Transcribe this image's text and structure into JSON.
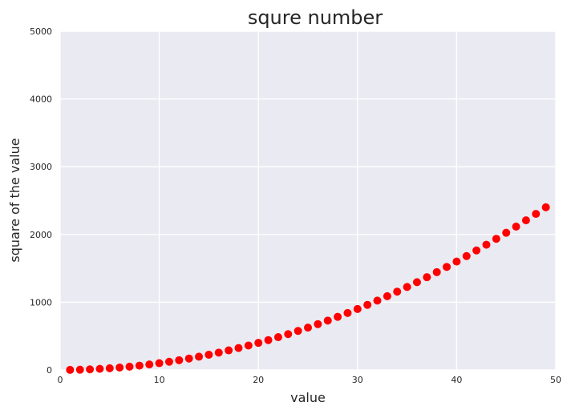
{
  "chart_data": {
    "type": "scatter",
    "title": "squre number",
    "xlabel": "value",
    "ylabel": "square of the value",
    "xlim": [
      0,
      50
    ],
    "ylim": [
      0,
      5000
    ],
    "x_ticks": [
      0,
      10,
      20,
      30,
      40,
      50
    ],
    "y_ticks": [
      0,
      1000,
      2000,
      3000,
      4000,
      5000
    ],
    "grid": true,
    "series": [
      {
        "x": [
          1,
          2,
          3,
          4,
          5,
          6,
          7,
          8,
          9,
          10,
          11,
          12,
          13,
          14,
          15,
          16,
          17,
          18,
          19,
          20,
          21,
          22,
          23,
          24,
          25,
          26,
          27,
          28,
          29,
          30,
          31,
          32,
          33,
          34,
          35,
          36,
          37,
          38,
          39,
          40,
          41,
          42,
          43,
          44,
          45,
          46,
          47,
          48,
          49
        ],
        "y": [
          1,
          4,
          9,
          16,
          25,
          36,
          49,
          64,
          81,
          100,
          121,
          144,
          169,
          196,
          225,
          256,
          289,
          324,
          361,
          400,
          441,
          484,
          529,
          576,
          625,
          676,
          729,
          784,
          841,
          900,
          961,
          1024,
          1089,
          1156,
          1225,
          1296,
          1369,
          1444,
          1521,
          1600,
          1681,
          1764,
          1849,
          1936,
          2025,
          2116,
          2209,
          2304,
          2401
        ],
        "color": "#ff0000"
      }
    ],
    "colors": {
      "plot_background": "#eaeaf2",
      "grid": "#ffffff",
      "marker": "#ff0000"
    }
  }
}
